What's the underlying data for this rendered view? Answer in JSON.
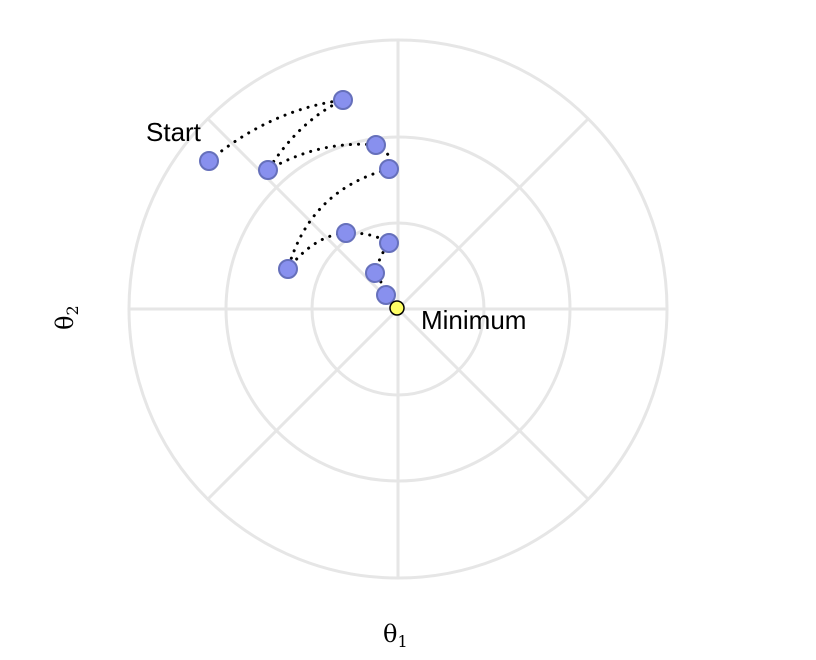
{
  "annotations": {
    "start": "Start",
    "minimum": "Minimum"
  },
  "axes": {
    "x": {
      "base": "θ",
      "sub": "1"
    },
    "y": {
      "base": "θ",
      "sub": "2"
    }
  },
  "colors": {
    "grid": "#e6e6e6",
    "point_fill": "#8890ee",
    "point_stroke": "#6670bb",
    "minimum_fill": "#ffff66",
    "path": "#000000"
  }
}
